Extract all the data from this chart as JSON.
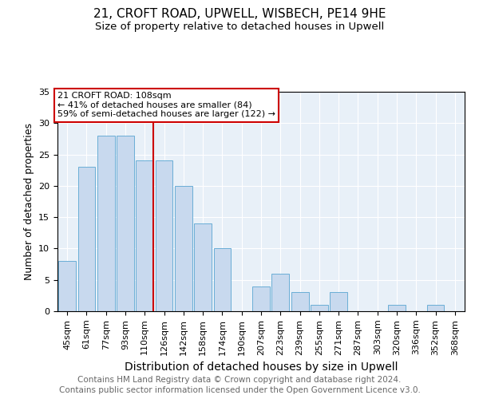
{
  "title1": "21, CROFT ROAD, UPWELL, WISBECH, PE14 9HE",
  "title2": "Size of property relative to detached houses in Upwell",
  "xlabel": "Distribution of detached houses by size in Upwell",
  "ylabel": "Number of detached properties",
  "categories": [
    "45sqm",
    "61sqm",
    "77sqm",
    "93sqm",
    "110sqm",
    "126sqm",
    "142sqm",
    "158sqm",
    "174sqm",
    "190sqm",
    "207sqm",
    "223sqm",
    "239sqm",
    "255sqm",
    "271sqm",
    "287sqm",
    "303sqm",
    "320sqm",
    "336sqm",
    "352sqm",
    "368sqm"
  ],
  "values": [
    8,
    23,
    28,
    28,
    24,
    24,
    20,
    14,
    10,
    0,
    4,
    6,
    3,
    1,
    3,
    0,
    0,
    1,
    0,
    1,
    0
  ],
  "bar_color": "#c8d9ee",
  "bar_edge_color": "#6aaed6",
  "vline_color": "#cc0000",
  "vline_x_index": 4,
  "annotation_line1": "21 CROFT ROAD: 108sqm",
  "annotation_line2": "← 41% of detached houses are smaller (84)",
  "annotation_line3": "59% of semi-detached houses are larger (122) →",
  "annotation_box_color": "#ffffff",
  "annotation_box_edge": "#cc0000",
  "ylim": [
    0,
    35
  ],
  "yticks": [
    0,
    5,
    10,
    15,
    20,
    25,
    30,
    35
  ],
  "footnote1": "Contains HM Land Registry data © Crown copyright and database right 2024.",
  "footnote2": "Contains public sector information licensed under the Open Government Licence v3.0.",
  "plot_bg_color": "#e8f0f8",
  "title1_fontsize": 11,
  "title2_fontsize": 9.5,
  "xlabel_fontsize": 10,
  "ylabel_fontsize": 9,
  "tick_fontsize": 8,
  "footnote_fontsize": 7.5
}
